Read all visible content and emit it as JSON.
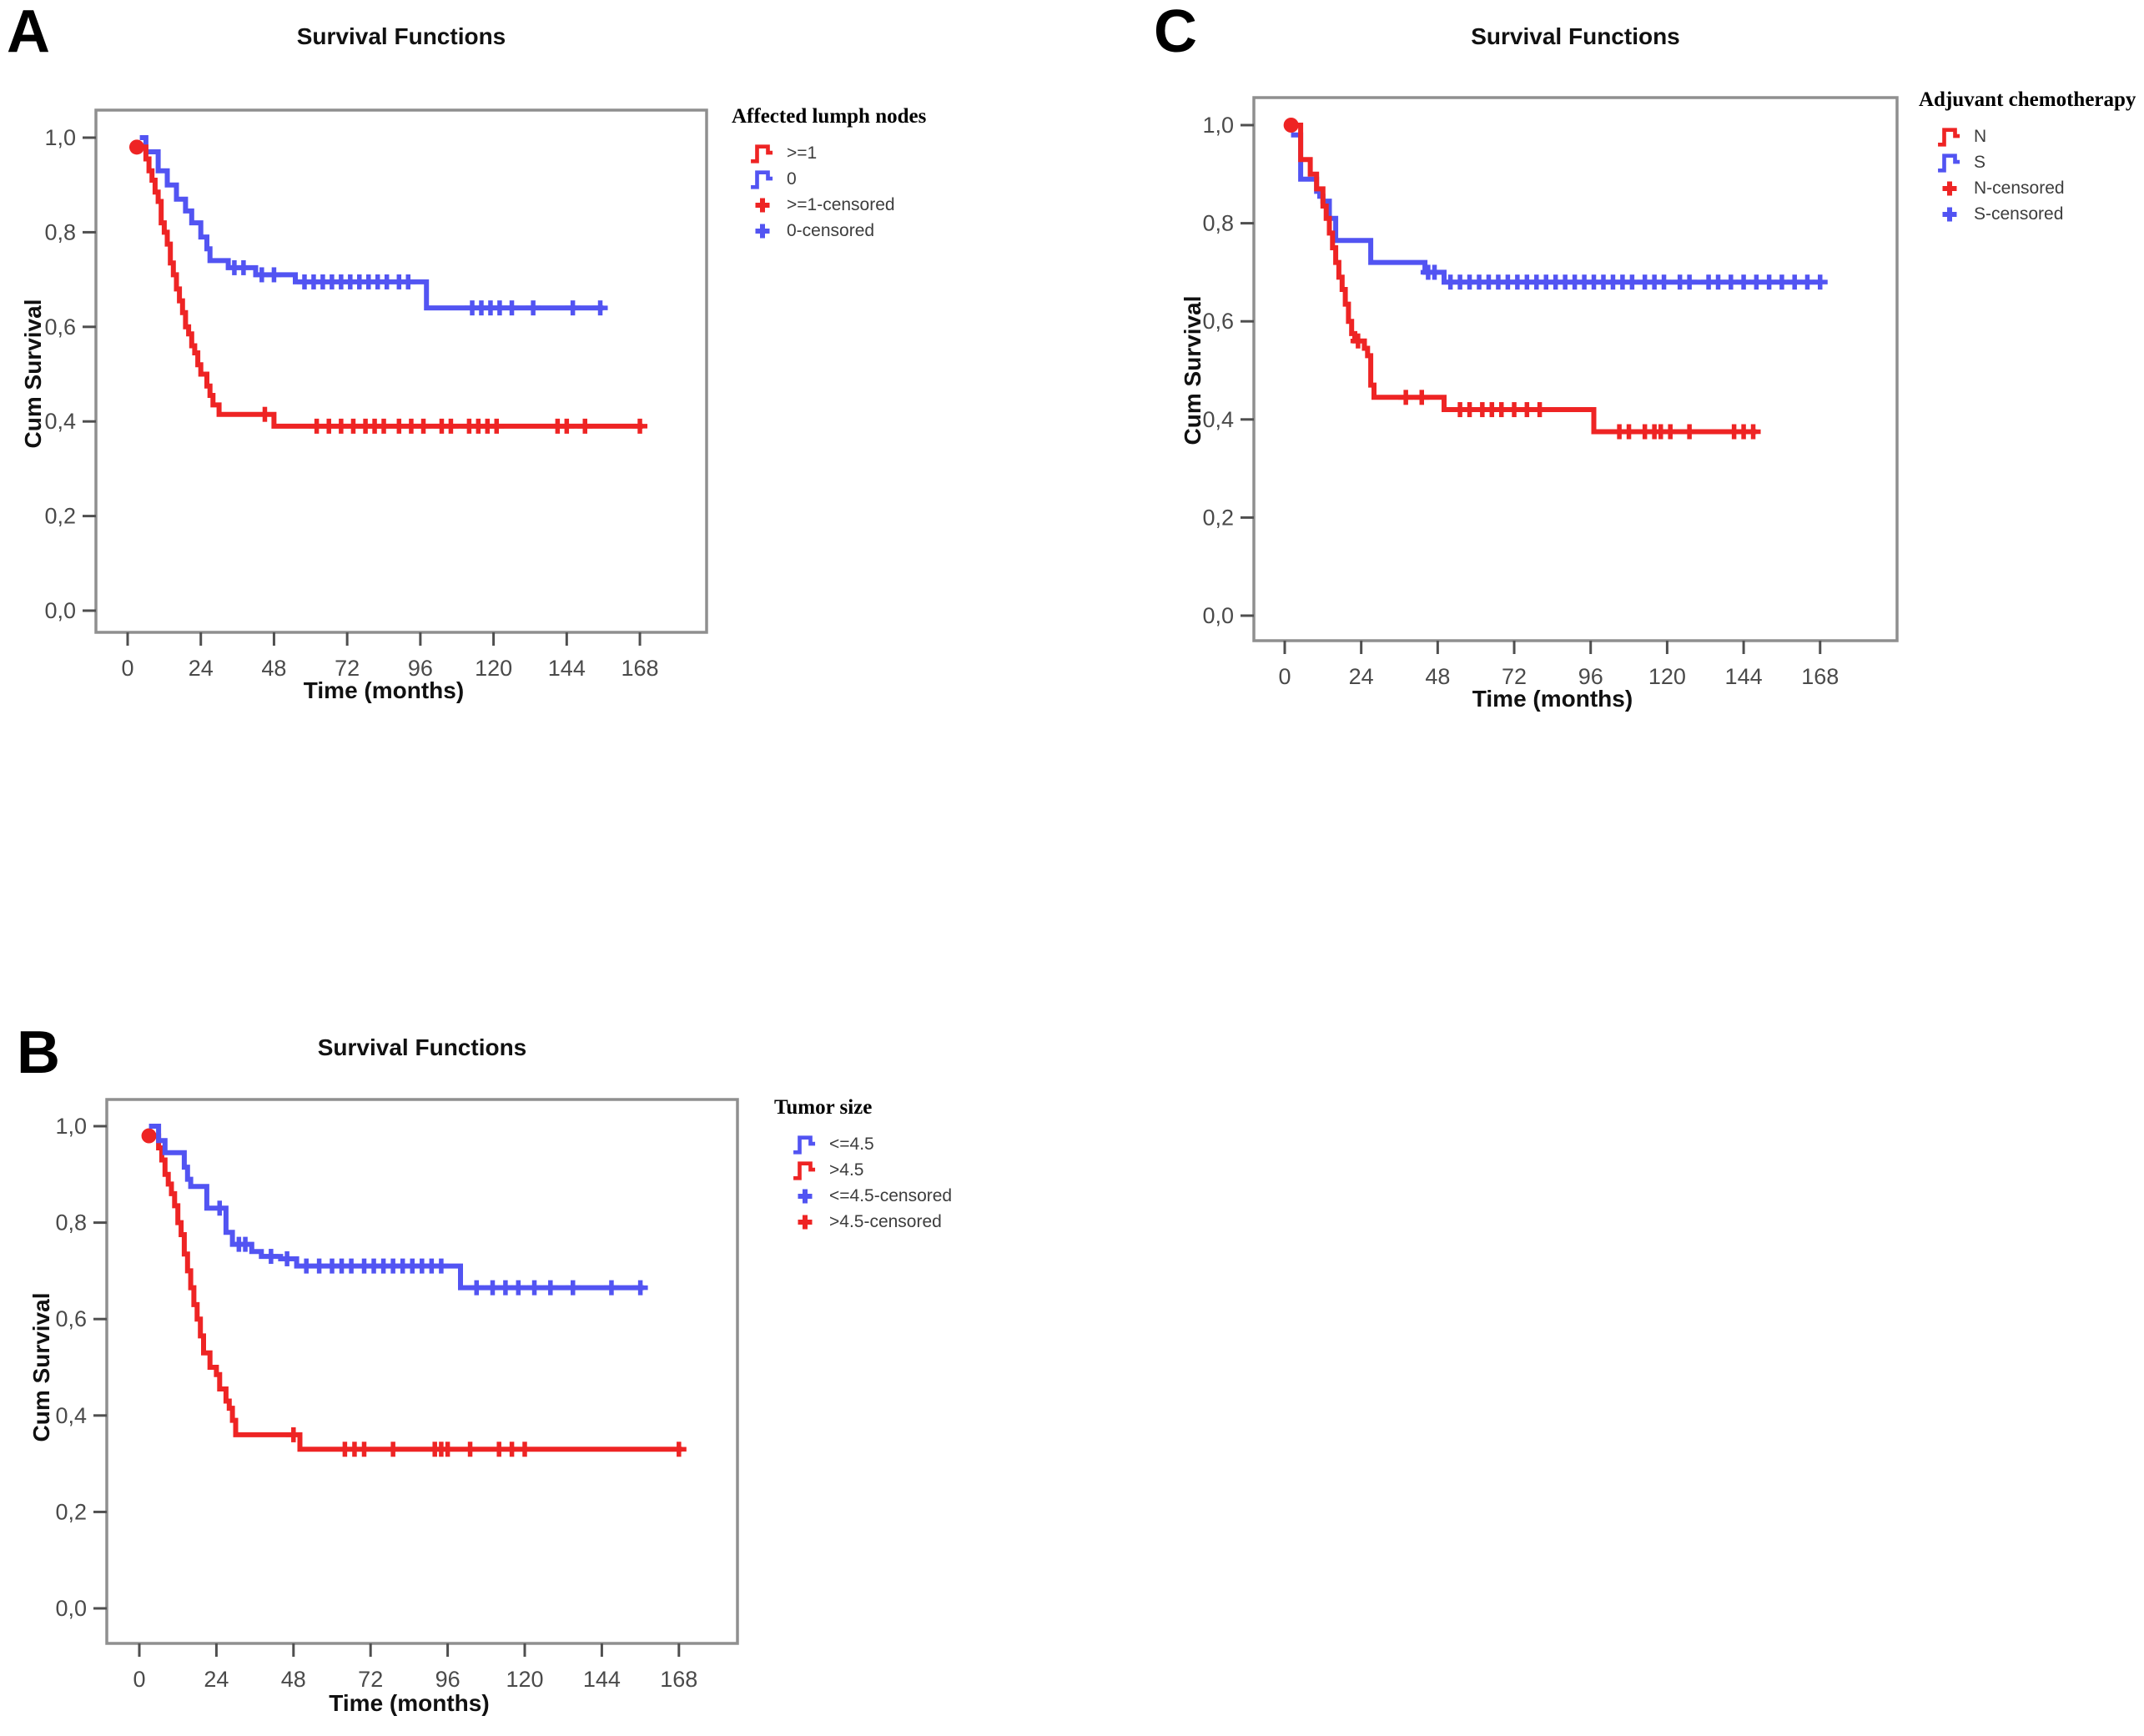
{
  "chart_data": [
    {
      "type": "line",
      "subtype": "kaplan_meier_step",
      "panel_label": "A",
      "title": "Survival Functions",
      "xlabel": "Time (months)",
      "ylabel": "Cum Survival",
      "x_ticks": [
        0,
        24,
        48,
        72,
        96,
        120,
        144,
        168
      ],
      "y_tick_values": [
        1.0,
        0.8,
        0.6,
        0.4,
        0.2,
        0.0
      ],
      "y_tick_labels": [
        "1,0",
        "0,8",
        "0,6",
        "0,4",
        "0,2",
        "0,0"
      ],
      "xlim": [
        -10,
        190
      ],
      "ylim": [
        -0.05,
        1.06
      ],
      "grid": false,
      "legend_position": "right",
      "legend_title": "Affected lumph nodes",
      "legend": [
        {
          "label": ">=1",
          "symbol": "step",
          "color": "#ee2424"
        },
        {
          "label": "0",
          "symbol": "step",
          "color": "#5254f2"
        },
        {
          "label": ">=1-censored",
          "symbol": "plus",
          "color": "#ee2424"
        },
        {
          "label": "0-censored",
          "symbol": "plus",
          "color": "#5254f2"
        }
      ],
      "series": [
        {
          "name": ">=1",
          "color": "#ee2424",
          "start_dot": true,
          "end": 169,
          "points": [
            [
              3,
              0.98
            ],
            [
              6,
              0.955
            ],
            [
              7,
              0.93
            ],
            [
              8,
              0.91
            ],
            [
              9,
              0.885
            ],
            [
              10,
              0.865
            ],
            [
              11,
              0.82
            ],
            [
              12,
              0.8
            ],
            [
              13,
              0.775
            ],
            [
              14,
              0.735
            ],
            [
              15,
              0.71
            ],
            [
              16,
              0.68
            ],
            [
              17,
              0.655
            ],
            [
              18,
              0.63
            ],
            [
              19,
              0.6
            ],
            [
              20,
              0.585
            ],
            [
              21,
              0.56
            ],
            [
              22,
              0.545
            ],
            [
              23,
              0.52
            ],
            [
              24,
              0.5
            ],
            [
              26,
              0.475
            ],
            [
              27,
              0.455
            ],
            [
              28,
              0.435
            ],
            [
              30,
              0.415
            ],
            [
              48,
              0.39
            ]
          ],
          "censored": [
            45,
            62,
            66,
            70,
            74,
            78,
            81,
            84,
            89,
            93,
            97,
            103,
            106,
            112,
            115,
            118,
            121,
            141,
            144,
            150,
            168
          ]
        },
        {
          "name": "0",
          "color": "#5254f2",
          "start_dot": false,
          "end": 156,
          "points": [
            [
              4,
              1.0
            ],
            [
              6,
              0.97
            ],
            [
              10,
              0.93
            ],
            [
              13,
              0.9
            ],
            [
              16,
              0.87
            ],
            [
              19,
              0.845
            ],
            [
              21,
              0.82
            ],
            [
              24,
              0.79
            ],
            [
              26,
              0.765
            ],
            [
              27,
              0.74
            ],
            [
              33,
              0.725
            ],
            [
              42,
              0.71
            ],
            [
              55,
              0.695
            ],
            [
              98,
              0.64
            ]
          ],
          "censored": [
            35,
            38,
            44,
            48,
            58,
            61,
            64,
            67,
            70,
            73,
            76,
            79,
            82,
            85,
            89,
            92,
            113,
            116,
            119,
            122,
            126,
            133,
            146,
            155
          ]
        }
      ]
    },
    {
      "type": "line",
      "subtype": "kaplan_meier_step",
      "panel_label": "B",
      "title": "Survival Functions",
      "xlabel": "Time (months)",
      "ylabel": "Cum Survival",
      "x_ticks": [
        0,
        24,
        48,
        72,
        96,
        120,
        144,
        168
      ],
      "y_tick_values": [
        1.0,
        0.8,
        0.6,
        0.4,
        0.2,
        0.0
      ],
      "y_tick_labels": [
        "1,0",
        "0,8",
        "0,6",
        "0,4",
        "0,2",
        "0,0"
      ],
      "xlim": [
        -10,
        190
      ],
      "ylim": [
        -0.05,
        1.06
      ],
      "grid": false,
      "legend_position": "right",
      "legend_title": "Tumor size",
      "legend": [
        {
          "label": "<=4.5",
          "symbol": "step",
          "color": "#5254f2"
        },
        {
          "label": ">4.5",
          "symbol": "step",
          "color": "#ee2424"
        },
        {
          "label": "<=4.5-censored",
          "symbol": "plus",
          "color": "#5254f2"
        },
        {
          "label": ">4.5-censored",
          "symbol": "plus",
          "color": "#ee2424"
        }
      ],
      "series": [
        {
          "name": "<=4.5",
          "color": "#5254f2",
          "start_dot": false,
          "end": 157,
          "points": [
            [
              3,
              1.0
            ],
            [
              6,
              0.97
            ],
            [
              8,
              0.945
            ],
            [
              14,
              0.915
            ],
            [
              15,
              0.89
            ],
            [
              16,
              0.875
            ],
            [
              21,
              0.83
            ],
            [
              27,
              0.78
            ],
            [
              29,
              0.755
            ],
            [
              35,
              0.74
            ],
            [
              38,
              0.73
            ],
            [
              44,
              0.725
            ],
            [
              49,
              0.71
            ],
            [
              100,
              0.665
            ]
          ],
          "censored": [
            25,
            31,
            33,
            41,
            46,
            52,
            56,
            60,
            63,
            66,
            70,
            73,
            76,
            79,
            82,
            85,
            88,
            91,
            94,
            105,
            110,
            114,
            118,
            123,
            128,
            135,
            147,
            156
          ]
        },
        {
          "name": ">4.5",
          "color": "#ee2424",
          "start_dot": true,
          "end": 169,
          "points": [
            [
              3,
              0.98
            ],
            [
              6,
              0.955
            ],
            [
              7,
              0.93
            ],
            [
              8,
              0.9
            ],
            [
              9,
              0.88
            ],
            [
              10,
              0.86
            ],
            [
              11,
              0.835
            ],
            [
              12,
              0.8
            ],
            [
              13,
              0.775
            ],
            [
              14,
              0.735
            ],
            [
              15,
              0.7
            ],
            [
              16,
              0.665
            ],
            [
              17,
              0.63
            ],
            [
              18,
              0.6
            ],
            [
              19,
              0.565
            ],
            [
              20,
              0.53
            ],
            [
              22,
              0.5
            ],
            [
              24,
              0.485
            ],
            [
              25,
              0.455
            ],
            [
              27,
              0.43
            ],
            [
              28,
              0.415
            ],
            [
              29,
              0.39
            ],
            [
              30,
              0.36
            ],
            [
              50,
              0.33
            ]
          ],
          "censored": [
            48,
            64,
            67,
            70,
            79,
            92,
            94,
            96,
            103,
            112,
            116,
            120,
            168
          ]
        }
      ]
    },
    {
      "type": "line",
      "subtype": "kaplan_meier_step",
      "panel_label": "C",
      "title": "Survival Functions",
      "xlabel": "Time (months)",
      "ylabel": "Cum Survival",
      "x_ticks": [
        0,
        24,
        48,
        72,
        96,
        120,
        144,
        168
      ],
      "y_tick_values": [
        1.0,
        0.8,
        0.6,
        0.4,
        0.2,
        0.0
      ],
      "y_tick_labels": [
        "1,0",
        "0,8",
        "0,6",
        "0,4",
        "0,2",
        "0,0"
      ],
      "xlim": [
        -10,
        192
      ],
      "ylim": [
        -0.05,
        1.06
      ],
      "grid": false,
      "legend_position": "right",
      "legend_title": "Adjuvant chemotherapy",
      "legend": [
        {
          "label": "N",
          "symbol": "step",
          "color": "#ee2424"
        },
        {
          "label": "S",
          "symbol": "step",
          "color": "#5254f2"
        },
        {
          "label": "N-censored",
          "symbol": "plus",
          "color": "#ee2424"
        },
        {
          "label": "S-censored",
          "symbol": "plus",
          "color": "#5254f2"
        }
      ],
      "series": [
        {
          "name": "N",
          "color": "#ee2424",
          "start_dot": true,
          "end": 148,
          "points": [
            [
              2,
              1.0
            ],
            [
              5,
              0.93
            ],
            [
              8,
              0.9
            ],
            [
              10,
              0.87
            ],
            [
              12,
              0.835
            ],
            [
              13,
              0.81
            ],
            [
              14,
              0.78
            ],
            [
              15,
              0.75
            ],
            [
              16,
              0.72
            ],
            [
              17,
              0.69
            ],
            [
              18,
              0.665
            ],
            [
              19,
              0.635
            ],
            [
              20,
              0.6
            ],
            [
              21,
              0.575
            ],
            [
              22,
              0.56
            ],
            [
              25,
              0.545
            ],
            [
              26,
              0.53
            ],
            [
              27,
              0.47
            ],
            [
              28,
              0.445
            ],
            [
              50,
              0.42
            ],
            [
              97,
              0.375
            ]
          ],
          "censored": [
            23,
            38,
            43,
            55,
            58,
            62,
            65,
            68,
            72,
            76,
            80,
            105,
            108,
            113,
            116,
            118,
            121,
            127,
            141,
            144,
            147
          ]
        },
        {
          "name": "S",
          "color": "#5254f2",
          "start_dot": false,
          "end": 168,
          "points": [
            [
              2,
              0.98
            ],
            [
              5,
              0.89
            ],
            [
              10,
              0.865
            ],
            [
              11,
              0.855
            ],
            [
              12,
              0.845
            ],
            [
              14,
              0.81
            ],
            [
              16,
              0.765
            ],
            [
              27,
              0.72
            ],
            [
              44,
              0.7
            ],
            [
              50,
              0.68
            ]
          ],
          "censored": [
            45,
            47,
            52,
            55,
            58,
            61,
            64,
            67,
            70,
            73,
            76,
            79,
            82,
            85,
            88,
            91,
            94,
            97,
            100,
            103,
            106,
            109,
            113,
            116,
            119,
            124,
            127,
            133,
            136,
            140,
            144,
            148,
            152,
            156,
            160,
            164,
            168
          ]
        }
      ]
    }
  ]
}
